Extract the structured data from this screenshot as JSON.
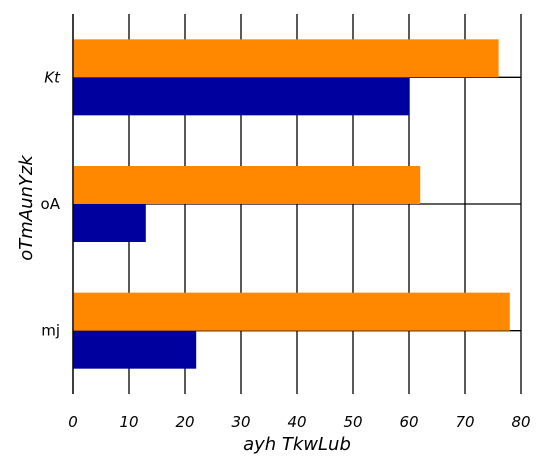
{
  "chart_data": {
    "type": "bar",
    "orientation": "horizontal",
    "categories": [
      "mj",
      "oA",
      "Kt"
    ],
    "series": [
      {
        "values": [
          22,
          13,
          60
        ],
        "color": "#00009e"
      },
      {
        "values": [
          78,
          62,
          76
        ],
        "color": "#ff8800"
      }
    ],
    "xlabel": "ayh TkwLub",
    "ylabel": "oTmAunYzk",
    "xlim": [
      0,
      80
    ],
    "xticks": [
      "0",
      "10",
      "20",
      "30",
      "40",
      "50",
      "60",
      "70",
      "80"
    ],
    "grid": {
      "x": true,
      "y": true
    },
    "legend": null
  }
}
